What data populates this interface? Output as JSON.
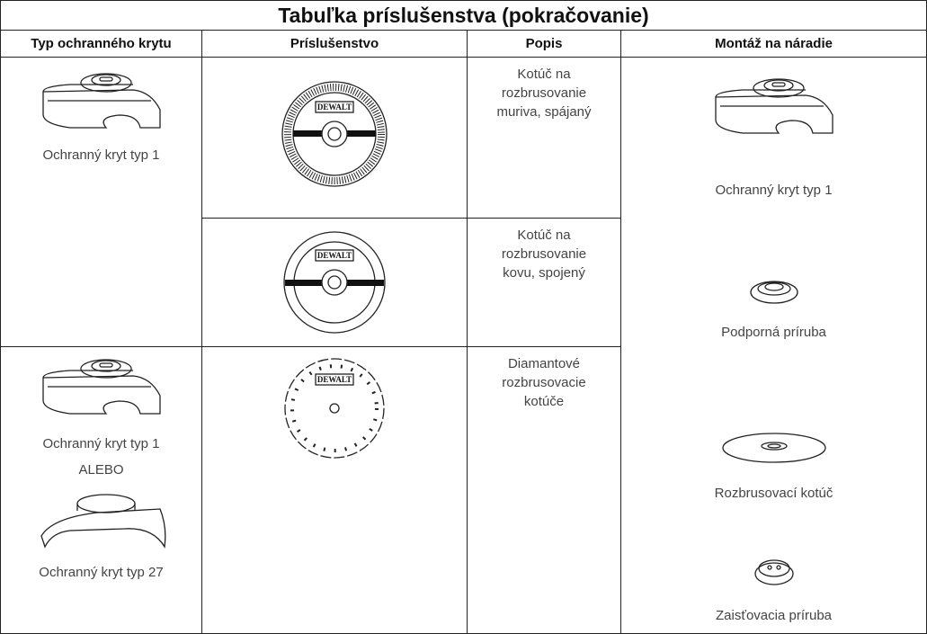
{
  "title": "Tabuľka príslušenstva (pokračovanie)",
  "headers": [
    "Typ ochranného krytu",
    "Príslušenstvo",
    "Popis",
    "Montáž na náradie"
  ],
  "guard_cells": [
    [
      "Ochranný kryt typ 1"
    ],
    [
      "Ochranný kryt typ 1",
      "ALEBO",
      "Ochranný kryt typ 27"
    ]
  ],
  "brand": "DEWALT",
  "descriptions": [
    "Kotúč na rozbrusovanie muriva, spájaný",
    "Kotúč na rozbrusovanie kovu, spojený",
    "Diamantové rozbrusovacie kotúče"
  ],
  "mounting": [
    "Ochranný kryt typ 1",
    "Podporná príruba",
    "Rozbrusovací kotúč",
    "Zaisťovacia príruba"
  ]
}
